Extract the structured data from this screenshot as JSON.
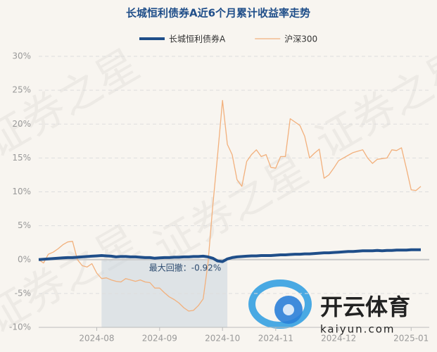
{
  "chart_data": {
    "type": "line",
    "title": "长城恒利债券A近6个月累计收益率走势",
    "watermarks": [
      "证券之星",
      "开云体育",
      "kaiyun.com"
    ],
    "categories": [
      null,
      null,
      null,
      null,
      null,
      null,
      null,
      null,
      null,
      null,
      null,
      null,
      "2024-08",
      null,
      null,
      null,
      null,
      null,
      null,
      null,
      null,
      null,
      null,
      null,
      null,
      "2024-09",
      null,
      null,
      null,
      null,
      null,
      null,
      null,
      null,
      null,
      null,
      null,
      null,
      "2024-10",
      null,
      null,
      null,
      null,
      null,
      null,
      null,
      null,
      null,
      null,
      "2024-11",
      null,
      null,
      null,
      null,
      null,
      null,
      null,
      null,
      null,
      null,
      null,
      null,
      "2024-12",
      null,
      null,
      null,
      null,
      null,
      null,
      null,
      null,
      null,
      null,
      null,
      null,
      null,
      null,
      "2025-01",
      null,
      null
    ],
    "series": [
      {
        "name": "长城恒利债券A",
        "color": "#1f4e89",
        "width": 4,
        "values": [
          0,
          0.05,
          0.1,
          0.15,
          0.2,
          0.25,
          0.3,
          0.3,
          0.35,
          0.4,
          0.45,
          0.5,
          0.55,
          0.6,
          0.55,
          0.5,
          0.4,
          0.45,
          0.45,
          0.4,
          0.4,
          0.35,
          0.3,
          0.3,
          0.2,
          0.25,
          0.3,
          0.3,
          0.35,
          0.35,
          0.4,
          0.4,
          0.45,
          0.45,
          0.5,
          0.4,
          0.2,
          -0.2,
          -0.3,
          0.1,
          0.3,
          0.4,
          0.45,
          0.5,
          0.55,
          0.55,
          0.6,
          0.6,
          0.6,
          0.65,
          0.7,
          0.7,
          0.75,
          0.8,
          0.8,
          0.85,
          0.85,
          0.9,
          0.95,
          1.0,
          1.0,
          1.05,
          1.1,
          1.15,
          1.2,
          1.2,
          1.25,
          1.3,
          1.3,
          1.3,
          1.35,
          1.3,
          1.35,
          1.35,
          1.4,
          1.4,
          1.4,
          1.45,
          1.45,
          1.45
        ]
      },
      {
        "name": "沪深300",
        "color": "#f2b07c",
        "width": 1.3,
        "values": [
          0,
          -0.5,
          0.8,
          1.1,
          1.6,
          2.2,
          2.6,
          2.7,
          0,
          -0.9,
          -1.1,
          -0.6,
          -2.0,
          -2.8,
          -2.7,
          -3.0,
          -3.2,
          -3.3,
          -2.8,
          -3.0,
          -3.2,
          -3.0,
          -3.3,
          -3.4,
          -4.2,
          -4.2,
          -4.9,
          -5.5,
          -5.9,
          -6.4,
          -7.1,
          -7.6,
          -7.5,
          -6.8,
          -5.8,
          -0.5,
          8,
          15.5,
          23.5,
          17,
          15.5,
          11.8,
          10.8,
          14.5,
          15.5,
          16.2,
          15.2,
          15.5,
          13.6,
          13.5,
          15.2,
          15.2,
          20.8,
          20.3,
          19.8,
          18.2,
          15.0,
          15.7,
          16.3,
          12.0,
          12.5,
          13.5,
          14.6,
          15.0,
          15.4,
          15.8,
          16.0,
          16.2,
          15.0,
          14.2,
          14.8,
          14.9,
          15.0,
          16.2,
          16.1,
          16.5,
          13.5,
          10.3,
          10.2,
          10.8
        ]
      }
    ],
    "max_drawdown": {
      "label": "最大回撤：-0.92%",
      "start": 13,
      "end": 39,
      "color": "#c9d3de"
    },
    "ylim": [
      -10,
      30
    ],
    "yticks": [
      {
        "value": -10,
        "label": "-10%"
      },
      {
        "value": -5,
        "label": "-5%"
      },
      {
        "value": 0,
        "label": "0%"
      },
      {
        "value": 5,
        "label": "5%"
      },
      {
        "value": 10,
        "label": "10%"
      },
      {
        "value": 15,
        "label": "15%"
      },
      {
        "value": 20,
        "label": "20%"
      },
      {
        "value": 25,
        "label": "25%"
      },
      {
        "value": 30,
        "label": "30%"
      }
    ],
    "grid": true,
    "legend": "top"
  }
}
